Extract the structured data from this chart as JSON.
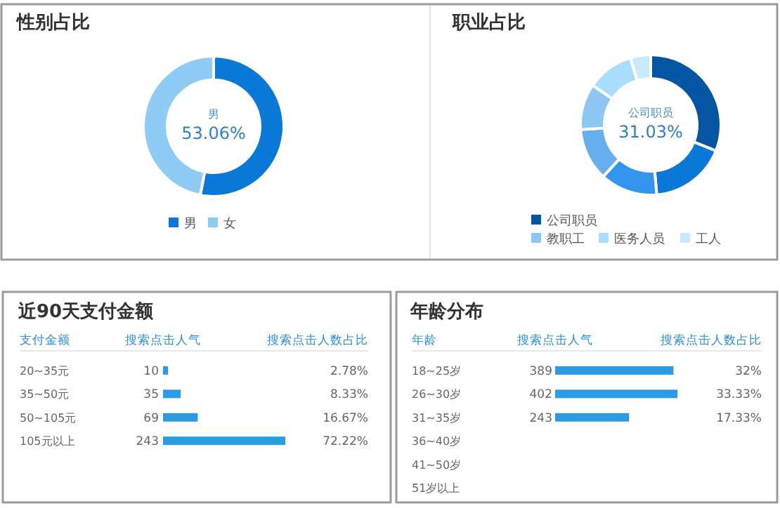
{
  "chart_data": [
    {
      "type": "donut",
      "title": "性别占比",
      "categories": [
        "男",
        "女"
      ],
      "values": [
        53.06,
        46.94
      ],
      "colors": [
        "#0a78d7",
        "#8ecbf5"
      ],
      "value_labels": [
        "53.06%",
        null
      ],
      "legend": "bottom"
    },
    {
      "type": "donut",
      "title": "职业占比",
      "categories": [
        "公司职员",
        null,
        null,
        null,
        "教职工",
        "医务人员",
        "工人"
      ],
      "values": [
        31.03,
        17.6,
        13.2,
        12.1,
        10.6,
        10.8,
        4.67
      ],
      "colors": [
        "#0456a3",
        "#0a78d7",
        "#3396ee",
        "#66aef0",
        "#8cc6f3",
        "#aadcfb",
        "#c8e8fc"
      ],
      "value_labels": [
        "31.03%",
        null,
        null,
        null,
        null,
        null,
        null
      ],
      "legend": "bottom"
    },
    {
      "type": "bar",
      "orientation": "horizontal",
      "title": "近90天支付金额",
      "ylabel": "支付金额",
      "xlabel": "搜索点击人气",
      "categories": [
        "20~35元",
        "35~50元",
        "50~105元",
        "105元以上"
      ],
      "values": [
        10,
        35,
        69,
        243
      ],
      "color": "#2b9be6",
      "data_labels": true,
      "annotations": [
        "搜索点击人数占比",
        "2.78%",
        "8.33%",
        "16.67%",
        "72.22%"
      ]
    },
    {
      "type": "bar",
      "orientation": "horizontal",
      "title": "年龄分布",
      "ylabel": "年龄",
      "xlabel": "搜索点击人气",
      "categories": [
        "18~25岁",
        "26~30岁",
        "31~35岁",
        "36~40岁",
        "41~50岁",
        "51岁以上"
      ],
      "values": [
        389,
        402,
        243,
        null,
        null,
        null
      ],
      "color": "#2b9be6",
      "data_labels": true,
      "annotations": [
        "搜索点击人数占比",
        "32%",
        "33.33%",
        "17.33%"
      ]
    }
  ]
}
